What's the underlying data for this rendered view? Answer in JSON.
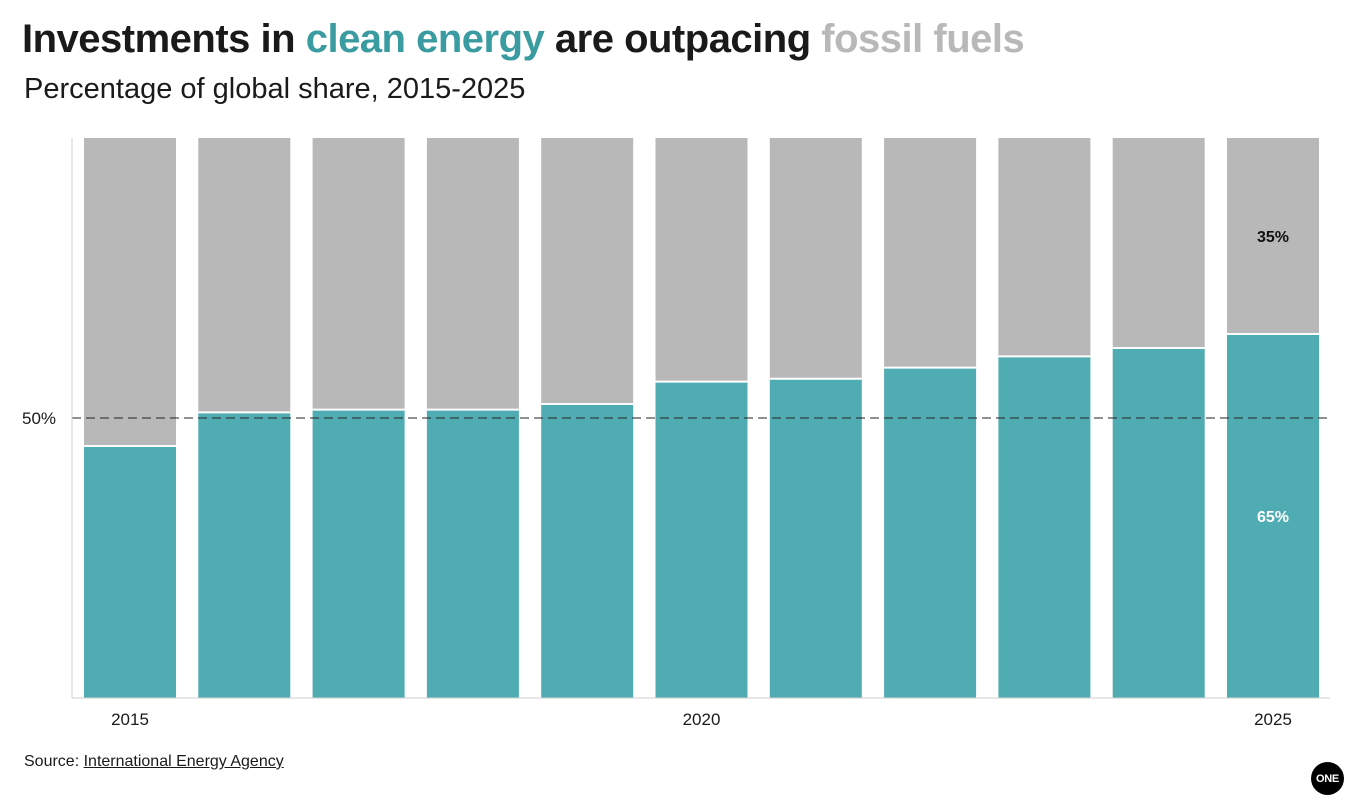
{
  "header": {
    "title_parts": [
      {
        "text": "Investments in ",
        "color": "#1a1a1a"
      },
      {
        "text": "clean energy",
        "color": "#3a9ca1"
      },
      {
        "text": " are outpacing ",
        "color": "#1a1a1a"
      },
      {
        "text": "fossil fuels",
        "color": "#b8b8b8"
      }
    ],
    "subtitle": "Percentage of global share, 2015-2025"
  },
  "chart_data": {
    "type": "bar",
    "stacked": true,
    "categories": [
      "2015",
      "2016",
      "2017",
      "2018",
      "2019",
      "2020",
      "2021",
      "2022",
      "2023",
      "2024",
      "2025"
    ],
    "series": [
      {
        "name": "clean energy",
        "color": "#50acb3",
        "values": [
          45,
          51,
          51.5,
          51.5,
          52.5,
          56.5,
          57,
          59,
          61,
          62.5,
          65
        ]
      },
      {
        "name": "fossil fuels",
        "color": "#b8b8b8",
        "values": [
          55,
          49,
          48.5,
          48.5,
          47.5,
          43.5,
          43,
          41,
          39,
          37.5,
          35
        ]
      }
    ],
    "ylim": [
      0,
      100
    ],
    "reference_line": {
      "value": 50,
      "label": "50%"
    },
    "x_tick_labels": [
      {
        "category": "2015",
        "label": "2015"
      },
      {
        "category": "2020",
        "label": "2020"
      },
      {
        "category": "2025",
        "label": "2025"
      }
    ],
    "data_labels": [
      {
        "category": "2025",
        "series": "fossil fuels",
        "text": "35%",
        "color": "#111111"
      },
      {
        "category": "2025",
        "series": "clean energy",
        "text": "65%",
        "color": "#ffffff"
      }
    ],
    "grid": false
  },
  "footer": {
    "source_prefix": "Source: ",
    "source_link": "International Energy Agency",
    "logo_text": "ONE"
  }
}
